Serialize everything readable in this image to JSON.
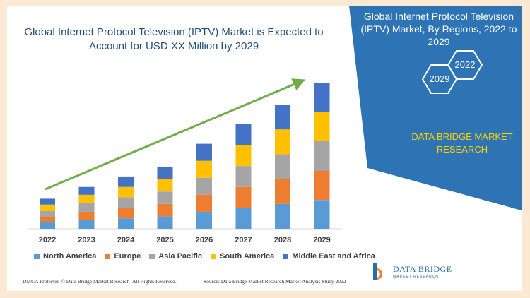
{
  "chart_data": {
    "type": "bar",
    "stacked": true,
    "title": "Global Internet Protocol Television (IPTV) Market is Expected to Account for USD XX Million by 2029",
    "categories": [
      "2022",
      "2023",
      "2024",
      "2025",
      "2026",
      "2027",
      "2028",
      "2029"
    ],
    "series": [
      {
        "name": "North America",
        "color": "#5b9bd5",
        "values": [
          1.0,
          1.3,
          1.6,
          1.9,
          2.6,
          3.2,
          3.8,
          4.4
        ]
      },
      {
        "name": "Europe",
        "color": "#ed7d31",
        "values": [
          0.8,
          1.3,
          1.6,
          1.9,
          2.6,
          3.2,
          3.8,
          4.5
        ]
      },
      {
        "name": "Asia Pacific",
        "color": "#a5a5a5",
        "values": [
          0.9,
          1.3,
          1.6,
          1.9,
          2.6,
          3.2,
          3.8,
          4.5
        ]
      },
      {
        "name": "South America",
        "color": "#ffc000",
        "values": [
          1.0,
          1.3,
          1.6,
          1.9,
          2.6,
          3.2,
          3.8,
          4.5
        ]
      },
      {
        "name": "Middle East and Africa",
        "color": "#4472c4",
        "values": [
          0.9,
          1.2,
          1.6,
          1.9,
          2.6,
          3.2,
          3.8,
          4.4
        ]
      }
    ],
    "ylim": [
      0,
      23
    ],
    "trend_arrow_color": "#70ad47",
    "legend_position": "bottom"
  },
  "panel": {
    "title": "Global Internet Protocol Television (IPTV) Market, By Regions, 2022 to 2029",
    "hex_year_start": "2022",
    "hex_year_end": "2029",
    "brand_line1": "DATA BRIDGE MARKET",
    "brand_line2": "RESEARCH",
    "bg_color": "#2e74b5"
  },
  "footer": {
    "dmca": "DMCA Protected © Data Bridge Market Research- All Rights Reserved.",
    "source": "Source: Data Bridge Market Research Market Analysis Study 2022"
  },
  "logo": {
    "name": "DATA BRIDGE",
    "subtitle": "MARKET RESEARCH"
  }
}
